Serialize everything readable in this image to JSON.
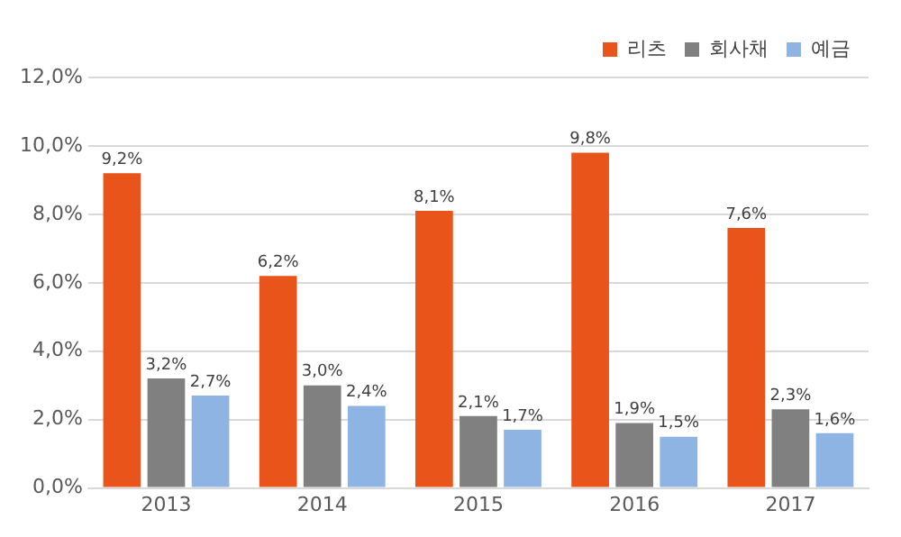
{
  "chart_data": {
    "type": "bar",
    "categories": [
      "2013",
      "2014",
      "2015",
      "2016",
      "2017"
    ],
    "series": [
      {
        "name": "리츠",
        "color": "#e8541a",
        "values": [
          9.2,
          6.2,
          8.1,
          9.8,
          7.6
        ],
        "value_labels": [
          "9,2%",
          "6,2%",
          "8,1%",
          "9,8%",
          "7,6%"
        ]
      },
      {
        "name": "회사채",
        "color": "#808080",
        "values": [
          3.2,
          3.0,
          2.1,
          1.9,
          2.3
        ],
        "value_labels": [
          "3,2%",
          "3,0%",
          "2,1%",
          "1,9%",
          "2,3%"
        ]
      },
      {
        "name": "예금",
        "color": "#8eb4e3",
        "values": [
          2.7,
          2.4,
          1.7,
          1.5,
          1.6
        ],
        "value_labels": [
          "2,7%",
          "2,4%",
          "1,7%",
          "1,5%",
          "1,6%"
        ]
      }
    ],
    "ylim": [
      0,
      12
    ],
    "yticks": [
      {
        "value": 0,
        "label": "0,0%"
      },
      {
        "value": 2,
        "label": "2,0%"
      },
      {
        "value": 4,
        "label": "4,0%"
      },
      {
        "value": 6,
        "label": "6,0%"
      },
      {
        "value": 8,
        "label": "8,0%"
      },
      {
        "value": 10,
        "label": "10,0%"
      },
      {
        "value": 12,
        "label": "12,0%"
      }
    ],
    "grid": "y",
    "legend": "top right"
  }
}
